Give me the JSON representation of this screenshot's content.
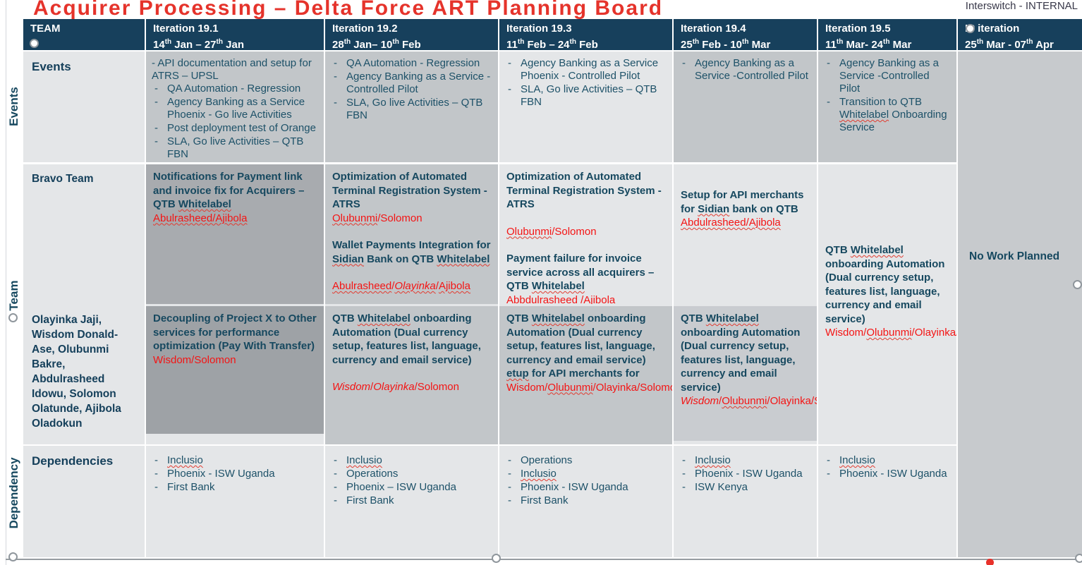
{
  "page": {
    "title": "Acquirer Processing – Delta Force ART Planning Board",
    "classification": "Interswitch - INTERNAL"
  },
  "side_labels": {
    "events": "Events",
    "team": "Team",
    "dependency": "Dependency"
  },
  "header": {
    "team": "TEAM",
    "iterations": [
      {
        "name": "Iteration 19.1",
        "dates": [
          {
            "t": "14"
          },
          {
            "t": "th",
            "c": "sup"
          },
          {
            "t": " Jan – 27"
          },
          {
            "t": "th",
            "c": "sup"
          },
          {
            "t": " Jan"
          }
        ]
      },
      {
        "name": "Iteration 19.2",
        "dates": [
          {
            "t": "28"
          },
          {
            "t": "th",
            "c": "sup"
          },
          {
            "t": " Jan– 10"
          },
          {
            "t": "th",
            "c": "sup"
          },
          {
            "t": " Feb"
          }
        ]
      },
      {
        "name": "Iteration 19.3",
        "dates": [
          {
            "t": "11"
          },
          {
            "t": "th",
            "c": "sup"
          },
          {
            "t": " Feb – 24"
          },
          {
            "t": "th",
            "c": "sup"
          },
          {
            "t": " Feb"
          }
        ]
      },
      {
        "name": "Iteration 19.4",
        "dates": [
          {
            "t": "25"
          },
          {
            "t": "th",
            "c": "sup"
          },
          {
            "t": " Feb -  10"
          },
          {
            "t": "th",
            "c": "sup"
          },
          {
            "t": " Mar"
          }
        ]
      },
      {
        "name": "Iteration 19.5",
        "dates": [
          {
            "t": "11"
          },
          {
            "t": "th",
            "c": "sup"
          },
          {
            "t": " Mar- 24"
          },
          {
            "t": "th",
            "c": "sup"
          },
          {
            "t": " Mar"
          }
        ]
      },
      {
        "name": "IP iteration",
        "dates": [
          {
            "t": "25"
          },
          {
            "t": "th",
            "c": "sup"
          },
          {
            "t": " Mar - 07"
          },
          {
            "t": "th",
            "c": "sup"
          },
          {
            "t": " Apr"
          }
        ]
      }
    ]
  },
  "events": {
    "label": "Events",
    "cols": [
      {
        "flush": [
          {
            "t": "- API documentation and setup for ATRS – UPSL"
          }
        ],
        "items": [
          [
            {
              "t": "QA Automation - Regression"
            }
          ],
          [
            {
              "t": "Agency Banking as a Service Phoenix  - Go live Activities"
            }
          ],
          [
            {
              "t": "Post deployment test of Orange"
            }
          ],
          [
            {
              "t": "SLA, Go live Activities – QTB FBN"
            }
          ]
        ]
      },
      {
        "items": [
          [
            {
              "t": "QA Automation - Regression"
            }
          ],
          [
            {
              "t": "Agency Banking as a Service -Controlled Pilot"
            }
          ],
          [
            {
              "t": "SLA, Go live Activities – QTB FBN"
            }
          ]
        ]
      },
      {
        "items": [
          [
            {
              "t": "Agency Banking as a Service Phoenix  - Controlled Pilot"
            }
          ],
          [
            {
              "t": "SLA, Go live Activities – QTB FBN"
            }
          ]
        ]
      },
      {
        "items": [
          [
            {
              "t": "Agency Banking as a Service -Controlled Pilot"
            }
          ]
        ]
      },
      {
        "items": [
          [
            {
              "t": "Agency Banking as a Service -Controlled Pilot"
            }
          ],
          [
            {
              "t": "Transition to QTB "
            },
            {
              "t": "Whitelabel",
              "c": "w"
            },
            {
              "t": " Onboarding Service"
            }
          ]
        ]
      }
    ]
  },
  "team": {
    "name": "Bravo Team",
    "members": "Olayinka Jaji, Wisdom Donald-Ase, Olubunmi Bakre, Abdulrasheed Idowu, Solomon Olatunde, Ajibola Oladokun",
    "cols": [
      {
        "cards": [
          {
            "blocks": [
              {
                "title": [
                  {
                    "t": "Notifications for Payment link and invoice fix for Acquirers – QTB "
                  },
                  {
                    "t": "Whitelabel",
                    "c": "w"
                  }
                ],
                "owners": [
                  {
                    "t": "Abulrasheed/Ajibola",
                    "c": "w"
                  }
                ]
              }
            ]
          },
          {
            "blocks": [
              {
                "title": [
                  {
                    "t": "Decoupling of Project X to Other services for performance optimization (Pay With Transfer)"
                  }
                ],
                "owners": [
                  {
                    "t": "Wisdom/Solomon"
                  }
                ]
              }
            ]
          }
        ]
      },
      {
        "cards": [
          {
            "blocks": [
              {
                "title": [
                  {
                    "t": "Optimization of Automated Terminal Registration System  - ATRS"
                  }
                ],
                "owners": [
                  {
                    "t": "Olubunmi",
                    "c": "w"
                  },
                  {
                    "t": "/Solomon"
                  }
                ]
              },
              {
                "title": [
                  {
                    "t": "Wallet Payments Integration for "
                  },
                  {
                    "t": "Sidian",
                    "c": "w"
                  },
                  {
                    "t": " Bank on QTB "
                  },
                  {
                    "t": "Whitelabel",
                    "c": "w"
                  }
                ],
                "owners": [
                  {
                    "t": "Abulrasheed",
                    "c": "w"
                  },
                  {
                    "t": "/"
                  },
                  {
                    "t": "Olayinka",
                    "c": "iw"
                  },
                  {
                    "t": "/"
                  },
                  {
                    "t": "Ajibola",
                    "c": "w"
                  }
                ]
              }
            ]
          },
          {
            "blocks": [
              {
                "title": [
                  {
                    "t": "QTB "
                  },
                  {
                    "t": "Whitelabel",
                    "c": "w"
                  },
                  {
                    "t": " onboarding Automation (Dual currency setup, features list, language, currency and email service)"
                  }
                ],
                "owners": [
                  {
                    "t": "Wisdom",
                    "c": "i"
                  },
                  {
                    "t": "/"
                  },
                  {
                    "t": "Olayinka",
                    "c": "i"
                  },
                  {
                    "t": "/Solomon"
                  }
                ]
              }
            ]
          }
        ]
      },
      {
        "cards": [
          {
            "blocks": [
              {
                "title": [
                  {
                    "t": "Optimization of Automated Terminal Registration System  - ATRS"
                  }
                ],
                "owners": [
                  {
                    "t": "Olubunmi",
                    "c": "w"
                  },
                  {
                    "t": "/Solomon"
                  }
                ]
              },
              {
                "title": [
                  {
                    "t": "Payment failure for invoice service across all acquirers – QTB "
                  },
                  {
                    "t": "Whitelabel",
                    "c": "w"
                  }
                ],
                "owners": [
                  {
                    "t": "Abbdulrasheed /Ajibola",
                    "c": "w"
                  }
                ]
              }
            ]
          },
          {
            "blocks": [
              {
                "title": [
                  {
                    "t": "QTB "
                  },
                  {
                    "t": "Whitelabel",
                    "c": "w"
                  },
                  {
                    "t": " onboarding Automation (Dual currency setup, features list, language, currency and email service) "
                  },
                  {
                    "t": "etup",
                    "c": "w"
                  },
                  {
                    "t": " for API merchants for"
                  }
                ],
                "owners": [
                  {
                    "t": "Wisdom/"
                  },
                  {
                    "t": "Olubunmi",
                    "c": "w"
                  },
                  {
                    "t": "/Olayinka/Solomon"
                  }
                ]
              }
            ]
          }
        ]
      },
      {
        "cards": [
          {
            "blocks": [
              {
                "title": [
                  {
                    "t": "Setup for API merchants for "
                  },
                  {
                    "t": "Sidian",
                    "c": "w"
                  },
                  {
                    "t": " bank on QTB"
                  }
                ],
                "owners": [
                  {
                    "t": "Abdulrasheed/Ajibola",
                    "c": "w"
                  }
                ]
              }
            ]
          },
          {
            "blocks": [
              {
                "title": [
                  {
                    "t": "QTB "
                  },
                  {
                    "t": "Whitelabel",
                    "c": "w"
                  },
                  {
                    "t": " onboarding Automation (Dual currency setup, features list, language, currency and email service)"
                  }
                ],
                "owners": [
                  {
                    "t": "Wisdom",
                    "c": "i"
                  },
                  {
                    "t": "/"
                  },
                  {
                    "t": "Olubunmi",
                    "c": "w"
                  },
                  {
                    "t": "/Olayinka/Solomon"
                  }
                ]
              }
            ]
          }
        ]
      },
      {
        "cards": [
          {
            "blocks": [
              {
                "title": [
                  {
                    "t": "QTB "
                  },
                  {
                    "t": "Whitelabel",
                    "c": "w"
                  },
                  {
                    "t": " onboarding Automation (Dual currency setup, features list, language, currency and email service)"
                  }
                ],
                "owners": [
                  {
                    "t": "Wisdom/"
                  },
                  {
                    "t": "Olubunmi",
                    "c": "w"
                  },
                  {
                    "t": "/Olayinka/Solomon"
                  }
                ]
              }
            ]
          }
        ]
      }
    ]
  },
  "ip_column": {
    "text": "No Work Planned"
  },
  "dependencies": {
    "label": "Dependencies",
    "cols": [
      {
        "items": [
          [
            {
              "t": "Inclusio",
              "c": "w"
            }
          ],
          [
            {
              "t": "Phoenix - ISW Uganda"
            }
          ],
          [
            {
              "t": "First Bank"
            }
          ]
        ]
      },
      {
        "items": [
          [
            {
              "t": "Inclusio",
              "c": "w"
            }
          ],
          [
            {
              "t": "Operations"
            }
          ],
          [
            {
              "t": "Phoenix – ISW Uganda"
            }
          ],
          [
            {
              "t": "First Bank"
            }
          ]
        ]
      },
      {
        "items": [
          [
            {
              "t": "Operations"
            }
          ],
          [
            {
              "t": "Inclusio",
              "c": "w"
            }
          ],
          [
            {
              "t": "Phoenix - ISW Uganda"
            }
          ],
          [
            {
              "t": "First Bank"
            }
          ]
        ]
      },
      {
        "items": [
          [
            {
              "t": "Inclusio",
              "c": "w"
            }
          ],
          [
            {
              "t": "Phoenix - ISW Uganda"
            }
          ],
          [
            {
              "t": "ISW Kenya"
            }
          ]
        ]
      },
      {
        "items": [
          [
            {
              "t": "Inclusio",
              "c": "w"
            }
          ],
          [
            {
              "t": "Phoenix - ISW Uganda"
            }
          ]
        ]
      }
    ]
  }
}
